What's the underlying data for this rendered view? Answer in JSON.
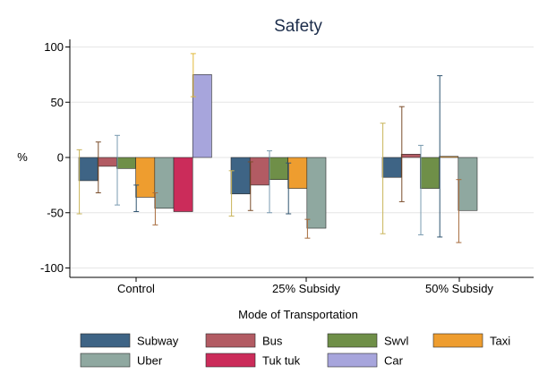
{
  "chart_data": {
    "type": "bar",
    "title": "Safety",
    "xlabel": "Mode of Transportation",
    "ylabel": "%",
    "ylim": [
      -110,
      105
    ],
    "yticks": [
      100,
      50,
      0,
      -50,
      -100
    ],
    "ytick_labels": [
      "100",
      "50",
      "0",
      "-50",
      "-100"
    ],
    "grid": true,
    "legend_position": "bottom",
    "categories": [
      "Control",
      "25% Subsidy",
      "50% Subsidy"
    ],
    "series": [
      {
        "name": "Subway",
        "color": "#3e6485",
        "values": [
          -21,
          -33,
          -18
        ],
        "ci": [
          [
            -51,
            7
          ],
          [
            -53,
            -12
          ],
          [
            -69,
            31
          ]
        ],
        "ci_color": "#c9b45a"
      },
      {
        "name": "Bus",
        "color": "#b25b63",
        "values": [
          -8,
          -25,
          3
        ],
        "ci": [
          [
            -32,
            14
          ],
          [
            -48,
            -4
          ],
          [
            -40,
            46
          ]
        ],
        "ci_color": "#7a4c2a"
      },
      {
        "name": "Swvl",
        "color": "#6f8f48",
        "values": [
          -10,
          -20,
          -28
        ],
        "ci": [
          [
            -43,
            20
          ],
          [
            -50,
            6
          ],
          [
            -70,
            11
          ]
        ],
        "ci_color": "#7a9bb0"
      },
      {
        "name": "Taxi",
        "color": "#ee9d2f",
        "values": [
          -36,
          -28,
          1
        ],
        "ci": [
          [
            -49,
            -25
          ],
          [
            -51,
            -5
          ],
          [
            -72,
            74
          ]
        ],
        "ci_color": "#2f5470"
      },
      {
        "name": "Uber",
        "color": "#8fa8a0",
        "values": [
          -46,
          -64,
          -48
        ],
        "ci": [
          [
            -61,
            -32
          ],
          [
            -73,
            -56
          ],
          [
            -77,
            -20
          ]
        ],
        "ci_color": "#a66a3a"
      },
      {
        "name": "Tuk tuk",
        "color": "#cb2c5a",
        "values": [
          -49,
          null,
          null
        ],
        "ci": [
          null,
          null,
          null
        ],
        "ci_color": "#cb2c5a"
      },
      {
        "name": "Car",
        "color": "#a7a5dc",
        "values": [
          75,
          null,
          null
        ],
        "ci": [
          [
            55,
            94
          ],
          null,
          null
        ],
        "ci_color": "#e0b83a"
      }
    ]
  }
}
